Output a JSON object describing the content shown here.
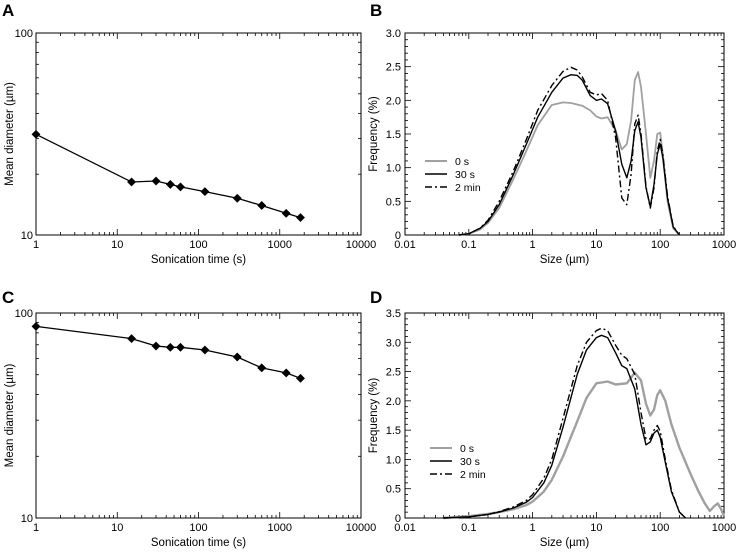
{
  "chart_data": [
    {
      "panel": "A",
      "type": "line",
      "xlabel": "Sonication time (s)",
      "ylabel": "Mean diameter (µm)",
      "xscale": "log",
      "yscale": "log",
      "xlim": [
        1,
        10000
      ],
      "ylim": [
        10,
        100
      ],
      "xticklabels": [
        "1",
        "10",
        "100",
        "1000",
        "10000"
      ],
      "yticklabels": [
        "10",
        "100"
      ],
      "marker": "diamond",
      "series": [
        {
          "x": [
            1,
            15,
            30,
            45,
            60,
            120,
            300,
            600,
            1200,
            1800
          ],
          "y": [
            31.5,
            18.3,
            18.5,
            17.8,
            17.3,
            16.4,
            15.2,
            14.0,
            12.8,
            12.2
          ]
        }
      ]
    },
    {
      "panel": "B",
      "type": "line",
      "xlabel": "Size (µm)",
      "ylabel": "Frequency (%)",
      "xscale": "log",
      "xlim": [
        0.01,
        1000
      ],
      "ylim": [
        0,
        3.0
      ],
      "xticklabels": [
        "0.01",
        "0.1",
        "1",
        "10",
        "100",
        "1000"
      ],
      "yticks": [
        0,
        0.5,
        1.0,
        1.5,
        2.0,
        2.5,
        3.0
      ],
      "yticklabels": [
        "0",
        "0.5",
        "1.0",
        "1.5",
        "2.0",
        "2.5",
        "3.0"
      ],
      "legend_position": "left-middle",
      "series": [
        {
          "name": "0 s",
          "color": "#a0a0a0",
          "style": "solid",
          "x": [
            0.07,
            0.1,
            0.15,
            0.2,
            0.3,
            0.5,
            0.8,
            1.2,
            2,
            3,
            4,
            6,
            8,
            10,
            12,
            15,
            20,
            25,
            30,
            35,
            40,
            45,
            50,
            60,
            70,
            80,
            90,
            100,
            110,
            130,
            160,
            200
          ],
          "y": [
            0,
            0.02,
            0.08,
            0.18,
            0.4,
            0.83,
            1.25,
            1.63,
            1.93,
            1.97,
            1.96,
            1.92,
            1.85,
            1.76,
            1.73,
            1.75,
            1.55,
            1.27,
            1.35,
            1.7,
            2.3,
            2.42,
            2.2,
            1.5,
            0.85,
            1.1,
            1.5,
            1.52,
            1.2,
            0.5,
            0.1,
            0
          ]
        },
        {
          "name": "30 s",
          "color": "#000000",
          "style": "solid",
          "x": [
            0.07,
            0.1,
            0.15,
            0.2,
            0.3,
            0.5,
            0.8,
            1.2,
            2,
            3,
            4,
            5,
            6,
            8,
            10,
            12,
            15,
            20,
            25,
            30,
            35,
            40,
            45,
            50,
            60,
            70,
            80,
            90,
            100,
            110,
            130,
            160,
            200
          ],
          "y": [
            0,
            0.02,
            0.1,
            0.2,
            0.45,
            0.9,
            1.35,
            1.75,
            2.12,
            2.33,
            2.38,
            2.37,
            2.3,
            2.07,
            2.0,
            2.02,
            1.95,
            1.55,
            1.05,
            0.85,
            1.1,
            1.55,
            1.68,
            1.45,
            0.7,
            0.42,
            0.75,
            1.2,
            1.35,
            1.15,
            0.55,
            0.12,
            0
          ]
        },
        {
          "name": "2 min",
          "color": "#000000",
          "style": "dashdot",
          "x": [
            0.07,
            0.1,
            0.15,
            0.2,
            0.3,
            0.5,
            0.8,
            1.2,
            2,
            3,
            4,
            5,
            6,
            8,
            10,
            12,
            15,
            20,
            25,
            30,
            35,
            40,
            45,
            50,
            60,
            70,
            80,
            90,
            100,
            110,
            130,
            160,
            200
          ],
          "y": [
            0,
            0.02,
            0.1,
            0.22,
            0.5,
            0.95,
            1.42,
            1.85,
            2.22,
            2.43,
            2.49,
            2.45,
            2.35,
            2.12,
            2.08,
            2.1,
            2.0,
            1.45,
            0.55,
            0.45,
            0.9,
            1.65,
            1.78,
            1.5,
            0.72,
            0.4,
            0.7,
            1.25,
            1.42,
            1.2,
            0.58,
            0.13,
            0
          ]
        }
      ]
    },
    {
      "panel": "C",
      "type": "line",
      "xlabel": "Sonication time (s)",
      "ylabel": "Mean diameter (µm)",
      "xscale": "log",
      "yscale": "log",
      "xlim": [
        1,
        10000
      ],
      "ylim": [
        10,
        100
      ],
      "xticklabels": [
        "1",
        "10",
        "100",
        "1000",
        "10000"
      ],
      "yticklabels": [
        "10",
        "100"
      ],
      "marker": "diamond",
      "series": [
        {
          "x": [
            1,
            15,
            30,
            45,
            60,
            120,
            300,
            600,
            1200,
            1800
          ],
          "y": [
            86,
            75,
            69,
            68,
            68,
            66,
            61,
            54,
            51,
            48
          ]
        }
      ]
    },
    {
      "panel": "D",
      "type": "line",
      "xlabel": "Size (µm)",
      "ylabel": "Frequency (%)",
      "xscale": "log",
      "xlim": [
        0.01,
        1000
      ],
      "ylim": [
        0,
        3.5
      ],
      "xticklabels": [
        "0.01",
        "0.1",
        "1",
        "10",
        "100",
        "1000"
      ],
      "yticks": [
        0,
        0.5,
        1.0,
        1.5,
        2.0,
        2.5,
        3.0,
        3.5
      ],
      "yticklabels": [
        "0",
        "0.5",
        "1.0",
        "1.5",
        "2.0",
        "2.5",
        "3.0",
        "3.5"
      ],
      "legend_position": "left-lower",
      "series": [
        {
          "name": "0 s",
          "color": "#a0a0a0",
          "style": "solid",
          "x": [
            0.04,
            0.1,
            0.2,
            0.3,
            0.5,
            0.8,
            1,
            1.5,
            2,
            3,
            5,
            7,
            10,
            15,
            20,
            30,
            40,
            50,
            60,
            70,
            80,
            90,
            100,
            120,
            150,
            200,
            300,
            400,
            500,
            600,
            700,
            800,
            900,
            1000
          ],
          "y": [
            0,
            0.03,
            0.07,
            0.1,
            0.15,
            0.22,
            0.28,
            0.45,
            0.65,
            1.05,
            1.65,
            2.05,
            2.3,
            2.33,
            2.28,
            2.3,
            2.48,
            2.35,
            1.95,
            1.75,
            1.85,
            2.1,
            2.18,
            2.0,
            1.6,
            1.2,
            0.75,
            0.45,
            0.25,
            0.12,
            0.2,
            0.25,
            0.15,
            0.03
          ]
        },
        {
          "name": "30 s",
          "color": "#000000",
          "style": "solid",
          "x": [
            0.04,
            0.1,
            0.2,
            0.3,
            0.5,
            0.8,
            1,
            1.5,
            2,
            3,
            5,
            7,
            10,
            12,
            15,
            20,
            25,
            30,
            40,
            50,
            60,
            70,
            80,
            90,
            100,
            120,
            150,
            200,
            250
          ],
          "y": [
            0,
            0.02,
            0.06,
            0.1,
            0.17,
            0.27,
            0.35,
            0.6,
            0.9,
            1.55,
            2.45,
            2.87,
            3.08,
            3.12,
            3.08,
            2.82,
            2.6,
            2.55,
            2.2,
            1.6,
            1.25,
            1.3,
            1.45,
            1.5,
            1.38,
            0.95,
            0.45,
            0.1,
            0
          ]
        },
        {
          "name": "2 min",
          "color": "#000000",
          "style": "dashdot",
          "x": [
            0.04,
            0.1,
            0.2,
            0.3,
            0.5,
            0.8,
            1,
            1.5,
            2,
            3,
            5,
            7,
            10,
            12,
            15,
            20,
            25,
            30,
            40,
            50,
            60,
            70,
            80,
            90,
            100,
            120,
            150,
            200,
            250
          ],
          "y": [
            0,
            0.02,
            0.06,
            0.11,
            0.19,
            0.3,
            0.4,
            0.68,
            1.0,
            1.7,
            2.6,
            3.0,
            3.2,
            3.24,
            3.2,
            2.95,
            2.78,
            2.72,
            2.45,
            1.8,
            1.35,
            1.35,
            1.5,
            1.58,
            1.48,
            1.0,
            0.48,
            0.1,
            0
          ]
        }
      ]
    }
  ]
}
